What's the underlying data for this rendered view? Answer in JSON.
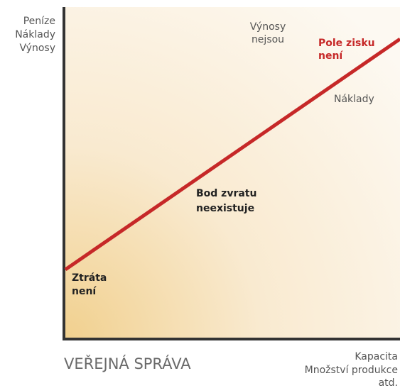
{
  "y_axis_label": [
    "Peníze",
    "Náklady",
    "Výnosy"
  ],
  "x_axis_label": [
    "Kapacita",
    "Množství produkce",
    "atd."
  ],
  "title": "VEŘEJNÁ SPRÁVA",
  "annotations": {
    "revenues": [
      "Výnosy",
      "nejsou"
    ],
    "profit": [
      "Pole zisku",
      "není"
    ],
    "costs": [
      "Náklady"
    ],
    "break_even": [
      "Bod zvratu",
      "neexistuje"
    ],
    "loss": [
      "Ztráta",
      "není"
    ]
  }
}
